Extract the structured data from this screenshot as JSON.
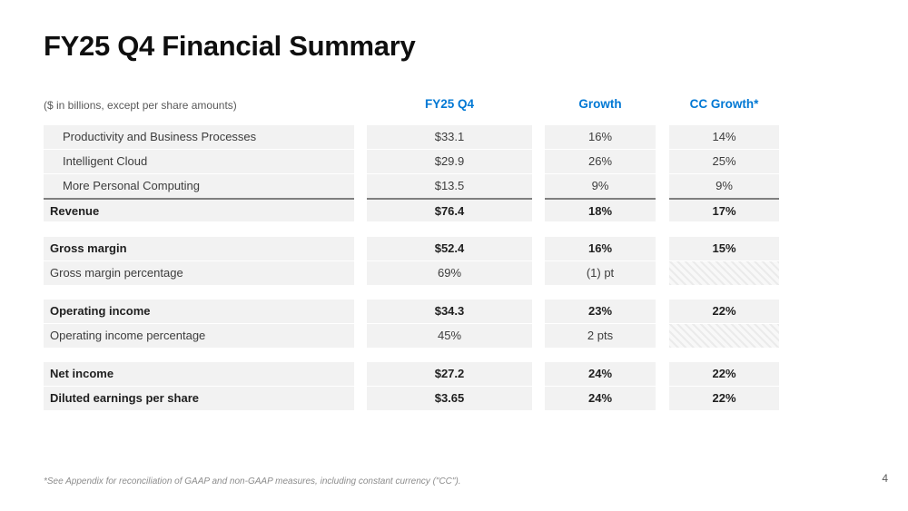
{
  "slide": {
    "title": "FY25 Q4 Financial Summary",
    "footnote": "*See Appendix for reconciliation of GAAP and non-GAAP measures, including constant currency (\"CC\").",
    "page_number": "4"
  },
  "colors": {
    "accent_blue": "#0078d4",
    "row_background": "#f2f2f2",
    "total_rule": "#7f7f7f",
    "body_text": "#3d3d3d",
    "bold_text": "#1f1f1f"
  },
  "table": {
    "unit_note": "($ in billions, except per share amounts)",
    "columns": {
      "c2": "FY25 Q4",
      "c3": "Growth",
      "c4": "CC Growth*"
    },
    "sections": [
      {
        "rows": [
          {
            "label": "Productivity and Business Processes",
            "fy25_q4": "$33.1",
            "growth": "16%",
            "cc_growth": "14%"
          },
          {
            "label": "Intelligent Cloud",
            "fy25_q4": "$29.9",
            "growth": "26%",
            "cc_growth": "25%"
          },
          {
            "label": "More Personal Computing",
            "fy25_q4": "$13.5",
            "growth": "9%",
            "cc_growth": "9%"
          },
          {
            "label": "Revenue",
            "fy25_q4": "$76.4",
            "growth": "18%",
            "cc_growth": "17%"
          }
        ]
      },
      {
        "rows": [
          {
            "label": "Gross margin",
            "fy25_q4": "$52.4",
            "growth": "16%",
            "cc_growth": "15%"
          },
          {
            "label": "Gross margin percentage",
            "fy25_q4": "69%",
            "growth": "(1) pt",
            "cc_growth": ""
          }
        ]
      },
      {
        "rows": [
          {
            "label": "Operating income",
            "fy25_q4": "$34.3",
            "growth": "23%",
            "cc_growth": "22%"
          },
          {
            "label": "Operating income percentage",
            "fy25_q4": "45%",
            "growth": "2 pts",
            "cc_growth": ""
          }
        ]
      },
      {
        "rows": [
          {
            "label": "Net income",
            "fy25_q4": "$27.2",
            "growth": "24%",
            "cc_growth": "22%"
          },
          {
            "label": "Diluted earnings per share",
            "fy25_q4": "$3.65",
            "growth": "24%",
            "cc_growth": "22%"
          }
        ]
      }
    ]
  }
}
